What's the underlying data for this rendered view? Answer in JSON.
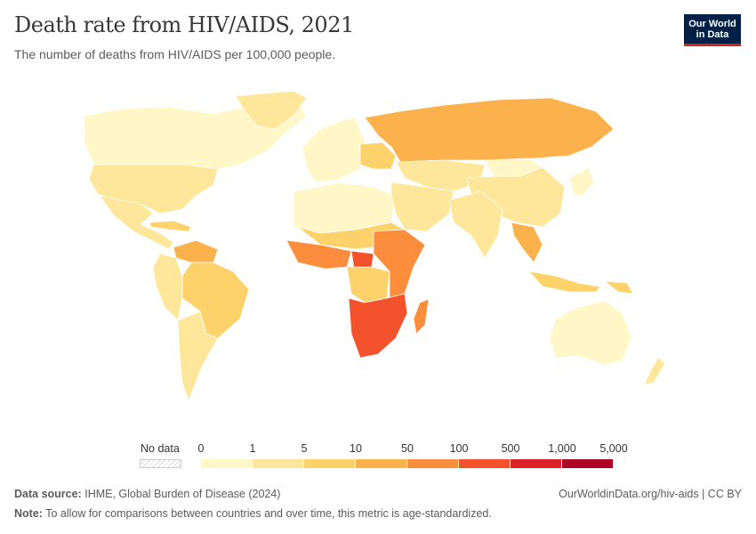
{
  "title": "Death rate from HIV/AIDS, 2021",
  "subtitle": "The number of deaths from HIV/AIDS per 100,000 people.",
  "logo": {
    "line1": "Our World",
    "line2": "in Data"
  },
  "legend": {
    "no_data_label": "No data",
    "ticks": [
      "0",
      "1",
      "5",
      "10",
      "50",
      "100",
      "500",
      "1,000",
      "5,000"
    ],
    "bin_colors": [
      "#fff7c7",
      "#fee79b",
      "#fdd26a",
      "#fcb24c",
      "#fb8d3c",
      "#f3522c",
      "#dc2227",
      "#b10026"
    ]
  },
  "footer": {
    "source_label": "Data source:",
    "source_text": "IHME, Global Burden of Disease (2024)",
    "note_label": "Note:",
    "note_text": "To allow for comparisons between countries and over time, this metric is age-standardized.",
    "right_text": "OurWorldinData.org/hiv-aids | CC BY"
  },
  "map_regions": [
    {
      "name": "Canada",
      "color": "#fff7c7"
    },
    {
      "name": "United States",
      "color": "#fee79b"
    },
    {
      "name": "Greenland",
      "color": "#fee79b"
    },
    {
      "name": "Mexico & Central America",
      "color": "#fee79b"
    },
    {
      "name": "Caribbean",
      "color": "#fdd26a"
    },
    {
      "name": "Venezuela & Guianas",
      "color": "#fcb24c"
    },
    {
      "name": "Brazil",
      "color": "#fdd26a"
    },
    {
      "name": "Andean South America",
      "color": "#fee79b"
    },
    {
      "name": "Southern Cone",
      "color": "#fee79b"
    },
    {
      "name": "Western Europe",
      "color": "#fff7c7"
    },
    {
      "name": "Eastern Europe",
      "color": "#fdd26a"
    },
    {
      "name": "Russia",
      "color": "#fcb24c"
    },
    {
      "name": "Central Asia",
      "color": "#fee79b"
    },
    {
      "name": "Mongolia",
      "color": "#fff7c7"
    },
    {
      "name": "China",
      "color": "#fee79b"
    },
    {
      "name": "Japan & Korea",
      "color": "#fff7c7"
    },
    {
      "name": "North Africa",
      "color": "#fff7c7"
    },
    {
      "name": "Middle East",
      "color": "#fee79b"
    },
    {
      "name": "South Asia",
      "color": "#fee79b"
    },
    {
      "name": "Southeast Asia mainland",
      "color": "#fcb24c"
    },
    {
      "name": "Sahel",
      "color": "#fdd26a"
    },
    {
      "name": "West Africa",
      "color": "#fb8d3c"
    },
    {
      "name": "Central African Republic",
      "color": "#f3522c"
    },
    {
      "name": "Congo basin",
      "color": "#fdd26a"
    },
    {
      "name": "East Africa",
      "color": "#fb8d3c"
    },
    {
      "name": "Southern Africa",
      "color": "#f3522c"
    },
    {
      "name": "Madagascar",
      "color": "#fb8d3c"
    },
    {
      "name": "Indonesia",
      "color": "#fdd26a"
    },
    {
      "name": "Papua New Guinea",
      "color": "#fdd26a"
    },
    {
      "name": "Australia",
      "color": "#fff7c7"
    },
    {
      "name": "New Zealand",
      "color": "#fee79b"
    }
  ]
}
